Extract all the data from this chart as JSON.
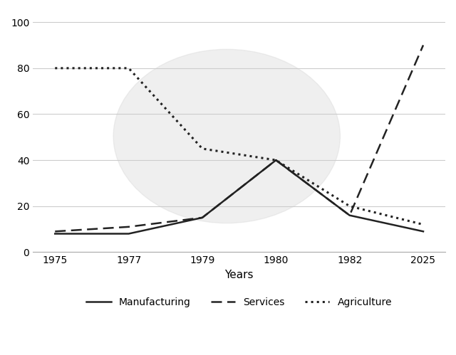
{
  "x_indices": [
    0,
    1,
    2,
    3,
    4,
    5
  ],
  "xtick_labels": [
    "1975",
    "1977",
    "1979",
    "1980",
    "1982",
    "2025"
  ],
  "manufacturing": [
    8,
    8,
    15,
    40,
    16,
    9
  ],
  "services": [
    9,
    11,
    15,
    40,
    16,
    90
  ],
  "agriculture": [
    80,
    80,
    45,
    40,
    20,
    12
  ],
  "xlabel": "Years",
  "ylabel": "",
  "ylim": [
    0,
    105
  ],
  "yticks": [
    0,
    20,
    40,
    60,
    80,
    100
  ],
  "legend_labels": [
    "Manufacturing",
    "Services",
    "Agriculture"
  ],
  "bg_color": "#ffffff",
  "line_color": "#222222",
  "grid_color": "#cccccc",
  "mfg_linewidth": 1.8,
  "svc_linewidth": 1.8,
  "agr_linewidth": 2.2
}
